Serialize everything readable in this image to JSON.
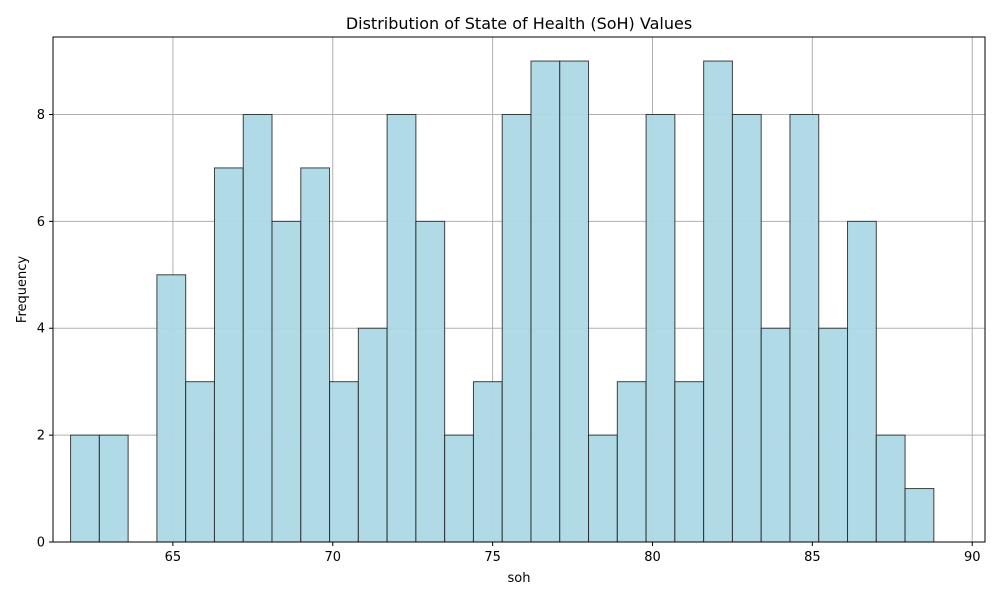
{
  "chart_data": {
    "type": "bar",
    "title": "Distribution of State of Health (SoH) Values",
    "xlabel": "soh",
    "ylabel": "Frequency",
    "bin_start": 61.8,
    "bin_width": 0.9,
    "values": [
      2,
      2,
      0,
      5,
      3,
      7,
      8,
      6,
      7,
      3,
      4,
      8,
      6,
      2,
      3,
      8,
      9,
      9,
      2,
      3,
      8,
      3,
      9,
      8,
      4,
      8,
      4,
      6,
      2,
      1
    ],
    "xlim": [
      61.25,
      90.4
    ],
    "ylim": [
      0,
      9.45
    ],
    "xticks": [
      65,
      70,
      75,
      80,
      85,
      90
    ],
    "yticks": [
      0,
      2,
      4,
      6,
      8
    ],
    "grid": true,
    "bar_color": "#ADD8E6",
    "edge_color": "#222222"
  }
}
